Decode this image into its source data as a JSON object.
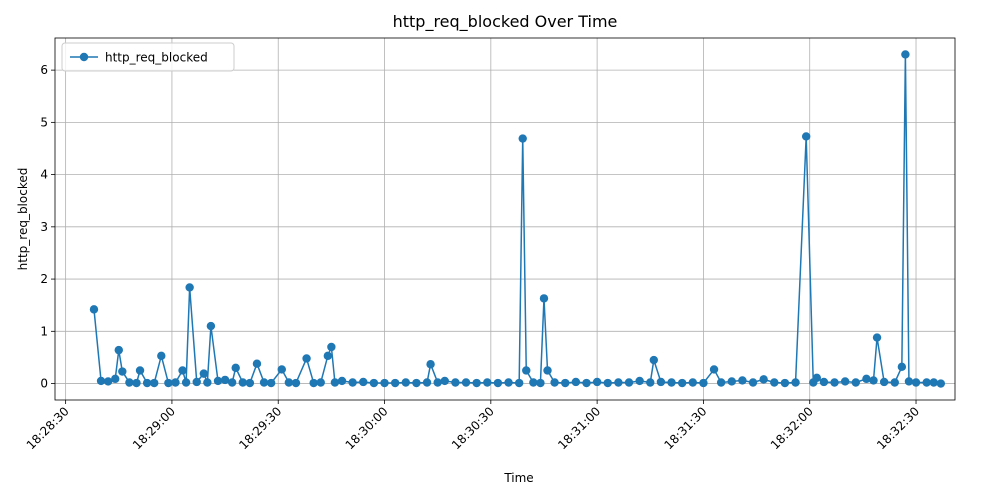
{
  "chart_data": {
    "type": "line",
    "title": "http_req_blocked Over Time",
    "x_label": "Time",
    "y_label": "http_req_blocked",
    "x": [
      "18:28:38",
      "18:28:40",
      "18:28:42",
      "18:28:44",
      "18:28:45",
      "18:28:46",
      "18:28:48",
      "18:28:50",
      "18:28:51",
      "18:28:53",
      "18:28:55",
      "18:28:57",
      "18:28:59",
      "18:29:01",
      "18:29:03",
      "18:29:04",
      "18:29:05",
      "18:29:07",
      "18:29:09",
      "18:29:10",
      "18:29:11",
      "18:29:13",
      "18:29:15",
      "18:29:17",
      "18:29:18",
      "18:29:20",
      "18:29:22",
      "18:29:24",
      "18:29:26",
      "18:29:28",
      "18:29:31",
      "18:29:33",
      "18:29:35",
      "18:29:38",
      "18:29:40",
      "18:29:42",
      "18:29:44",
      "18:29:45",
      "18:29:46",
      "18:29:48",
      "18:29:51",
      "18:29:54",
      "18:29:57",
      "18:30:00",
      "18:30:03",
      "18:30:06",
      "18:30:09",
      "18:30:12",
      "18:30:13",
      "18:30:15",
      "18:30:17",
      "18:30:20",
      "18:30:23",
      "18:30:26",
      "18:30:29",
      "18:30:32",
      "18:30:35",
      "18:30:38",
      "18:30:39",
      "18:30:40",
      "18:30:42",
      "18:30:44",
      "18:30:45",
      "18:30:46",
      "18:30:48",
      "18:30:51",
      "18:30:54",
      "18:30:57",
      "18:31:00",
      "18:31:03",
      "18:31:06",
      "18:31:09",
      "18:31:12",
      "18:31:15",
      "18:31:16",
      "18:31:18",
      "18:31:21",
      "18:31:24",
      "18:31:27",
      "18:31:30",
      "18:31:33",
      "18:31:35",
      "18:31:38",
      "18:31:41",
      "18:31:44",
      "18:31:47",
      "18:31:50",
      "18:31:53",
      "18:31:56",
      "18:31:59",
      "18:32:01",
      "18:32:02",
      "18:32:04",
      "18:32:07",
      "18:32:10",
      "18:32:13",
      "18:32:16",
      "18:32:18",
      "18:32:19",
      "18:32:21",
      "18:32:24",
      "18:32:26",
      "18:32:27",
      "18:32:28",
      "18:32:30",
      "18:32:33",
      "18:32:35",
      "18:32:37"
    ],
    "series": [
      {
        "name": "http_req_blocked",
        "color": "#1f77b4",
        "values": [
          1.42,
          0.05,
          0.04,
          0.09,
          0.64,
          0.23,
          0.02,
          0.01,
          0.25,
          0.01,
          0.01,
          0.53,
          0.01,
          0.02,
          0.25,
          0.02,
          1.84,
          0.03,
          0.19,
          0.02,
          1.1,
          0.05,
          0.07,
          0.02,
          0.3,
          0.02,
          0.01,
          0.38,
          0.02,
          0.01,
          0.27,
          0.02,
          0.01,
          0.48,
          0.01,
          0.02,
          0.53,
          0.7,
          0.02,
          0.05,
          0.02,
          0.03,
          0.01,
          0.01,
          0.01,
          0.02,
          0.01,
          0.02,
          0.37,
          0.02,
          0.05,
          0.02,
          0.02,
          0.01,
          0.02,
          0.01,
          0.02,
          0.01,
          4.69,
          0.25,
          0.02,
          0.01,
          1.63,
          0.25,
          0.02,
          0.01,
          0.03,
          0.01,
          0.03,
          0.01,
          0.02,
          0.02,
          0.05,
          0.02,
          0.45,
          0.03,
          0.02,
          0.01,
          0.02,
          0.01,
          0.27,
          0.02,
          0.04,
          0.06,
          0.02,
          0.08,
          0.02,
          0.01,
          0.02,
          4.73,
          0.02,
          0.11,
          0.03,
          0.02,
          0.04,
          0.02,
          0.09,
          0.06,
          0.88,
          0.03,
          0.02,
          0.32,
          6.3,
          0.04,
          0.02,
          0.02,
          0.02,
          0.0
        ]
      }
    ],
    "xlim": [
      "18:28:27",
      "18:32:41"
    ],
    "xticks": [
      "18:28:30",
      "18:29:00",
      "18:29:30",
      "18:30:00",
      "18:30:30",
      "18:31:00",
      "18:31:30",
      "18:32:00",
      "18:32:30"
    ],
    "ylim": [
      -0.315,
      6.615
    ],
    "yticks": [
      0,
      1,
      2,
      3,
      4,
      5,
      6
    ],
    "grid": true,
    "legend": "upper left"
  }
}
